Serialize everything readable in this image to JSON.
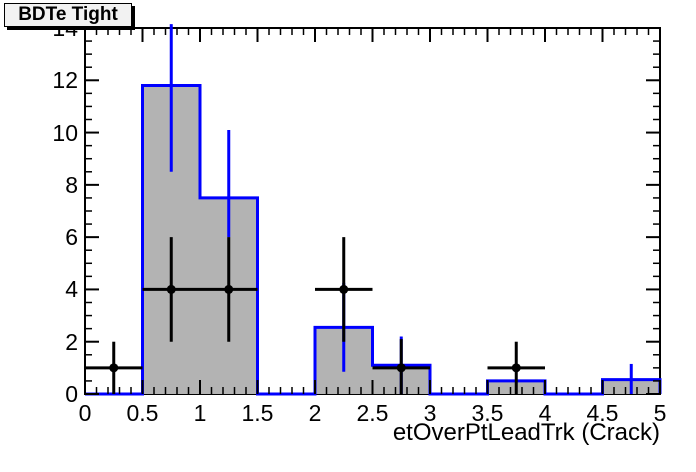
{
  "title_box": {
    "text": "BDTe Tight"
  },
  "x_axis": {
    "title": "etOverPtLeadTrk (Crack)",
    "min": 0,
    "max": 5,
    "major_step": 0.5,
    "minor_step": 0.1,
    "tick_labels": [
      "0",
      "0.5",
      "1",
      "1.5",
      "2",
      "2.5",
      "3",
      "3.5",
      "4",
      "4.5",
      "5"
    ]
  },
  "y_axis": {
    "title": "",
    "min": 0,
    "max": 14,
    "major_step": 2,
    "minor_step": 0.5,
    "tick_labels": [
      "0",
      "2",
      "4",
      "6",
      "8",
      "10",
      "12",
      "14"
    ]
  },
  "colors": {
    "canvas_bg": "#ffffff",
    "frame_line": "#000000",
    "hist_fill": "#b3b3b3",
    "hist_line": "#0000ff",
    "data_color": "#000000",
    "title_box_fill": "#f2f2f2"
  },
  "chart_data": {
    "type": "bar",
    "title": "BDTe Tight",
    "xlabel": "etOverPtLeadTrk (Crack)",
    "ylabel": "",
    "xlim": [
      0,
      5
    ],
    "ylim": [
      0,
      14
    ],
    "grid": false,
    "legend": false,
    "bin_edges": [
      0,
      0.5,
      1,
      1.5,
      2,
      2.5,
      3,
      3.5,
      4,
      4.5,
      5
    ],
    "series": [
      {
        "name": "mc-histogram",
        "style": "filled-step-histogram",
        "values": [
          0,
          11.8,
          7.5,
          0,
          2.55,
          1.1,
          0,
          0.5,
          0,
          0.55
        ],
        "error_bars": [
          {
            "x": 0.75,
            "y_low": 8.5,
            "y_high": 14.15
          },
          {
            "x": 1.25,
            "y_low": 6.0,
            "y_high": 10.1
          },
          {
            "x": 2.25,
            "y_low": 0.85,
            "y_high": 4.25
          },
          {
            "x": 2.75,
            "y_low": 0.0,
            "y_high": 2.2
          },
          {
            "x": 4.75,
            "y_low": 0.0,
            "y_high": 1.15
          }
        ]
      },
      {
        "name": "data-points",
        "style": "points-with-errors",
        "points": [
          {
            "x": 0.25,
            "y": 1,
            "x_low": 0.0,
            "x_high": 0.5,
            "y_low": 0,
            "y_high": 2
          },
          {
            "x": 0.75,
            "y": 4,
            "x_low": 0.5,
            "x_high": 1.0,
            "y_low": 2,
            "y_high": 6
          },
          {
            "x": 1.25,
            "y": 4,
            "x_low": 1.0,
            "x_high": 1.5,
            "y_low": 2,
            "y_high": 6
          },
          {
            "x": 2.25,
            "y": 4,
            "x_low": 2.0,
            "x_high": 2.5,
            "y_low": 2,
            "y_high": 6
          },
          {
            "x": 2.75,
            "y": 1,
            "x_low": 2.5,
            "x_high": 3.0,
            "y_low": 0,
            "y_high": 2.1
          },
          {
            "x": 3.75,
            "y": 1,
            "x_low": 3.5,
            "x_high": 4.0,
            "y_low": 0,
            "y_high": 2
          }
        ]
      }
    ]
  }
}
